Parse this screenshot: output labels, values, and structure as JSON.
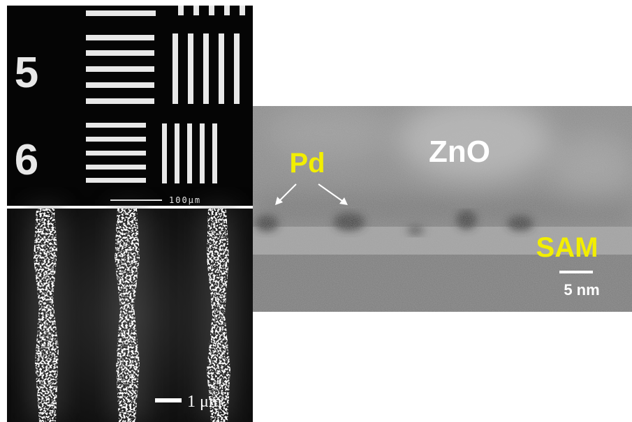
{
  "panels": {
    "optical": {
      "labels": [
        "5",
        "6"
      ],
      "scale_bar": "100μm"
    },
    "sem": {
      "scale_bar": "1 μm"
    },
    "tem": {
      "labels": {
        "pd": "Pd",
        "zno": "ZnO",
        "sam": "SAM"
      },
      "scale_bar": "5 nm"
    }
  }
}
